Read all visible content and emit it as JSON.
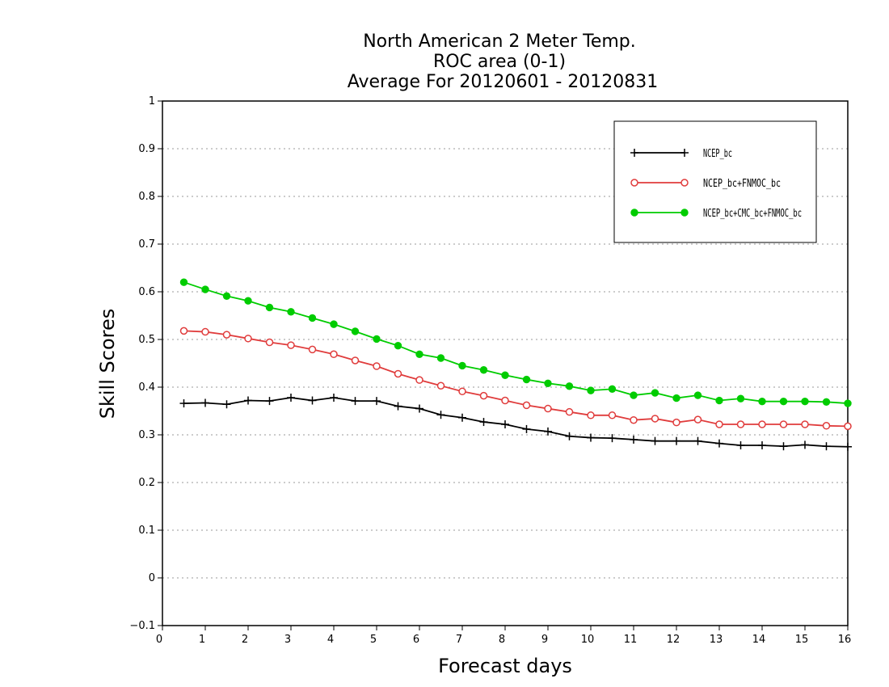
{
  "chart_data": {
    "type": "line",
    "title_lines": [
      "North American 2 Meter Temp.",
      "ROC area (0-1)",
      "Average For 20120601 - 20120831"
    ],
    "xlabel": "Forecast days",
    "ylabel": "Skill Scores",
    "xlim": [
      0,
      16
    ],
    "ylim": [
      -0.1,
      1
    ],
    "xticks": [
      "0",
      "1",
      "2",
      "3",
      "4",
      "5",
      "6",
      "7",
      "8",
      "9",
      "10",
      "11",
      "12",
      "13",
      "14",
      "15",
      "16"
    ],
    "yticks": [
      "−0.1",
      "0",
      "0.1",
      "0.2",
      "0.3",
      "0.4",
      "0.5",
      "0.6",
      "0.7",
      "0.8",
      "0.9",
      "1"
    ],
    "grid": true,
    "legend_position": "top-right",
    "x": [
      0.5,
      1,
      1.5,
      2,
      2.5,
      3,
      3.5,
      4,
      4.5,
      5,
      5.5,
      6,
      6.5,
      7,
      7.5,
      8,
      8.5,
      9,
      9.5,
      10,
      10.5,
      11,
      11.5,
      12,
      12.5,
      13,
      13.5,
      14,
      14.5,
      15,
      15.5,
      16
    ],
    "series": [
      {
        "name": "NCEP_bc",
        "color": "#000000",
        "marker": "plus",
        "values": [
          0.366,
          0.367,
          0.364,
          0.372,
          0.371,
          0.378,
          0.372,
          0.378,
          0.371,
          0.371,
          0.36,
          0.355,
          0.342,
          0.336,
          0.327,
          0.322,
          0.312,
          0.307,
          0.297,
          0.294,
          0.293,
          0.29,
          0.287,
          0.287,
          0.287,
          0.282,
          0.278,
          0.278,
          0.276,
          0.279,
          0.276,
          0.275
        ]
      },
      {
        "name": "NCEP_bc+FNMOC_bc",
        "color": "#e03c3c",
        "marker": "open-circle",
        "values": [
          0.518,
          0.516,
          0.51,
          0.502,
          0.494,
          0.488,
          0.479,
          0.469,
          0.456,
          0.444,
          0.428,
          0.415,
          0.403,
          0.391,
          0.382,
          0.372,
          0.362,
          0.355,
          0.348,
          0.341,
          0.341,
          0.331,
          0.334,
          0.326,
          0.332,
          0.322,
          0.322,
          0.322,
          0.322,
          0.322,
          0.319,
          0.318
        ]
      },
      {
        "name": "NCEP_bc+CMC_bc+FNMOC_bc",
        "color": "#00cc00",
        "marker": "filled-circle",
        "values": [
          0.62,
          0.605,
          0.591,
          0.581,
          0.567,
          0.558,
          0.545,
          0.532,
          0.517,
          0.501,
          0.487,
          0.469,
          0.461,
          0.445,
          0.436,
          0.425,
          0.416,
          0.408,
          0.402,
          0.393,
          0.396,
          0.383,
          0.388,
          0.377,
          0.383,
          0.372,
          0.376,
          0.37,
          0.37,
          0.37,
          0.369,
          0.366
        ]
      }
    ]
  }
}
